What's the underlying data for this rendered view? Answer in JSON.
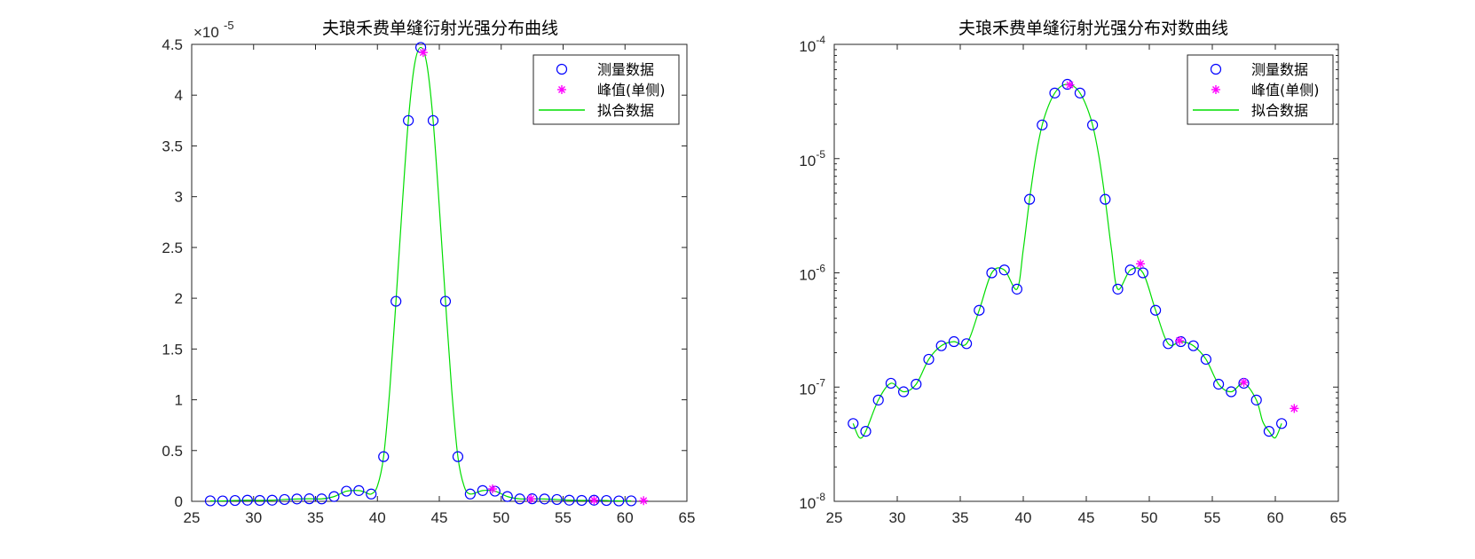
{
  "chart_data": [
    {
      "type": "scatter",
      "title": "夫琅禾费单缝衍射光强分布曲线",
      "xlim": [
        25,
        65
      ],
      "ylim": [
        0,
        4.5
      ],
      "y_exponent_label": "×10",
      "y_exponent_power": "-5",
      "y_scale": "linear",
      "x_ticks": [
        25,
        30,
        35,
        40,
        45,
        50,
        55,
        60,
        65
      ],
      "y_ticks": [
        0,
        0.5,
        1,
        1.5,
        2,
        2.5,
        3,
        3.5,
        4,
        4.5
      ],
      "y_tick_labels": [
        "0",
        "0.5",
        "1",
        "1.5",
        "2",
        "2.5",
        "3",
        "3.5",
        "4",
        "4.5"
      ],
      "legend": {
        "position": "top-right",
        "entries": [
          "测量数据",
          "峰值(单侧)",
          "拟合数据"
        ]
      },
      "series": [
        {
          "name": "测量数据",
          "marker": "circle",
          "color": "#0000ff",
          "x": [
            26.5,
            27.5,
            28.5,
            29.5,
            30.5,
            31.5,
            32.5,
            33.5,
            34.5,
            35.5,
            36.5,
            37.5,
            38.5,
            39.5,
            40.5,
            41.5,
            42.5,
            43.5,
            44.5,
            45.5,
            46.5,
            47.5,
            48.5,
            49.5,
            50.5,
            51.5,
            52.5,
            53.5,
            54.5,
            55.5,
            56.5,
            57.5,
            58.5,
            59.5,
            60.5
          ],
          "y": [
            0.005,
            0.004,
            0.008,
            0.011,
            0.009,
            0.011,
            0.018,
            0.023,
            0.025,
            0.024,
            0.047,
            0.1,
            0.106,
            0.072,
            0.44,
            1.97,
            3.75,
            4.47,
            3.75,
            1.97,
            0.44,
            0.072,
            0.106,
            0.1,
            0.047,
            0.024,
            0.025,
            0.023,
            0.018,
            0.011,
            0.009,
            0.011,
            0.008,
            0.004,
            0.005
          ]
        },
        {
          "name": "峰值(单侧)",
          "marker": "star",
          "color": "#ff00ff",
          "x": [
            43.7,
            49.3,
            52.4,
            57.5,
            61.5
          ],
          "y": [
            4.42,
            0.122,
            0.025,
            0.011,
            0.0065
          ]
        },
        {
          "name": "拟合数据",
          "marker": "line",
          "color": "#00dd00",
          "x": [
            26.5,
            27.0,
            27.5,
            28.5,
            29.5,
            30.5,
            31.5,
            32.5,
            33.5,
            34.5,
            35.5,
            36.5,
            37.5,
            38.5,
            39.0,
            39.5,
            40.0,
            40.5,
            41.0,
            41.5,
            42.0,
            42.5,
            43.0,
            43.5,
            44.0,
            44.5,
            45.0,
            45.5,
            46.0,
            46.5,
            47.0,
            47.5,
            48.5,
            49.5,
            50.5,
            51.5,
            52.5,
            53.5,
            54.5,
            55.5,
            56.5,
            57.5,
            58.5,
            59.0,
            59.5,
            60.0,
            60.5
          ],
          "y": [
            0.005,
            0.0035,
            0.004,
            0.008,
            0.011,
            0.009,
            0.011,
            0.018,
            0.023,
            0.025,
            0.024,
            0.047,
            0.1,
            0.106,
            0.09,
            0.072,
            0.15,
            0.44,
            1.1,
            1.97,
            2.9,
            3.75,
            4.3,
            4.47,
            4.3,
            3.75,
            2.9,
            1.97,
            1.1,
            0.44,
            0.15,
            0.072,
            0.106,
            0.1,
            0.047,
            0.024,
            0.025,
            0.023,
            0.018,
            0.011,
            0.009,
            0.011,
            0.008,
            0.005,
            0.004,
            0.0035,
            0.005
          ]
        }
      ]
    },
    {
      "type": "scatter",
      "title": "夫琅禾费单缝衍射光强分布对数曲线",
      "xlim": [
        25,
        65
      ],
      "ylim_log10": [
        -8,
        -4
      ],
      "y_scale": "log",
      "x_ticks": [
        25,
        30,
        35,
        40,
        45,
        50,
        55,
        60,
        65
      ],
      "y_ticks_exponents": [
        -8,
        -7,
        -6,
        -5,
        -4
      ],
      "y_tick_base": "10",
      "legend": {
        "position": "top-right",
        "entries": [
          "测量数据",
          "峰值(单侧)",
          "拟合数据"
        ]
      },
      "series": [
        {
          "name": "测量数据",
          "marker": "circle",
          "color": "#0000ff",
          "x": [
            26.5,
            27.5,
            28.5,
            29.5,
            30.5,
            31.5,
            32.5,
            33.5,
            34.5,
            35.5,
            36.5,
            37.5,
            38.5,
            39.5,
            40.5,
            41.5,
            42.5,
            43.5,
            44.5,
            45.5,
            46.5,
            47.5,
            48.5,
            49.5,
            50.5,
            51.5,
            52.5,
            53.5,
            54.5,
            55.5,
            56.5,
            57.5,
            58.5,
            59.5,
            60.5
          ],
          "y": [
            4.8e-08,
            4.1e-08,
            7.7e-08,
            1.08e-07,
            9.1e-08,
            1.06e-07,
            1.75e-07,
            2.3e-07,
            2.5e-07,
            2.4e-07,
            4.7e-07,
            1e-06,
            1.06e-06,
            7.2e-07,
            4.4e-06,
            1.97e-05,
            3.75e-05,
            4.47e-05,
            3.75e-05,
            1.97e-05,
            4.4e-06,
            7.2e-07,
            1.06e-06,
            1e-06,
            4.7e-07,
            2.4e-07,
            2.5e-07,
            2.3e-07,
            1.75e-07,
            1.06e-07,
            9.1e-08,
            1.08e-07,
            7.7e-08,
            4.1e-08,
            4.8e-08
          ]
        },
        {
          "name": "峰值(单侧)",
          "marker": "star",
          "color": "#ff00ff",
          "x": [
            43.7,
            49.3,
            52.4,
            57.5,
            61.5
          ],
          "y": [
            4.42e-05,
            1.2e-06,
            2.55e-07,
            1.1e-07,
            6.5e-08
          ]
        },
        {
          "name": "拟合数据",
          "marker": "line",
          "color": "#00dd00",
          "x": [
            26.5,
            27.0,
            27.5,
            28.5,
            29.5,
            30.5,
            31.5,
            32.5,
            33.5,
            34.5,
            35.5,
            36.5,
            37.5,
            38.5,
            39.5,
            40.0,
            40.5,
            41.0,
            41.5,
            42.0,
            42.5,
            43.0,
            43.5,
            44.0,
            44.5,
            45.0,
            45.5,
            46.0,
            46.5,
            47.0,
            47.5,
            48.5,
            49.5,
            50.5,
            51.5,
            52.5,
            53.5,
            54.5,
            55.5,
            56.5,
            57.5,
            58.5,
            59.0,
            59.5,
            60.0,
            60.5
          ],
          "y": [
            4.8e-08,
            3.6e-08,
            4.1e-08,
            7.7e-08,
            1.08e-07,
            9.1e-08,
            1.06e-07,
            1.75e-07,
            2.3e-07,
            2.5e-07,
            2.4e-07,
            4.7e-07,
            1e-06,
            1.06e-06,
            7.2e-07,
            1.6e-06,
            4.4e-06,
            1.05e-05,
            1.97e-05,
            2.9e-05,
            3.75e-05,
            4.3e-05,
            4.47e-05,
            4.3e-05,
            3.75e-05,
            2.9e-05,
            1.97e-05,
            1.05e-05,
            4.4e-06,
            1.6e-06,
            7.2e-07,
            1.06e-06,
            1e-06,
            4.7e-07,
            2.4e-07,
            2.5e-07,
            2.3e-07,
            1.75e-07,
            1.06e-07,
            9.1e-08,
            1.08e-07,
            7.7e-08,
            5e-08,
            4.1e-08,
            3.6e-08,
            4.8e-08
          ]
        }
      ]
    }
  ]
}
